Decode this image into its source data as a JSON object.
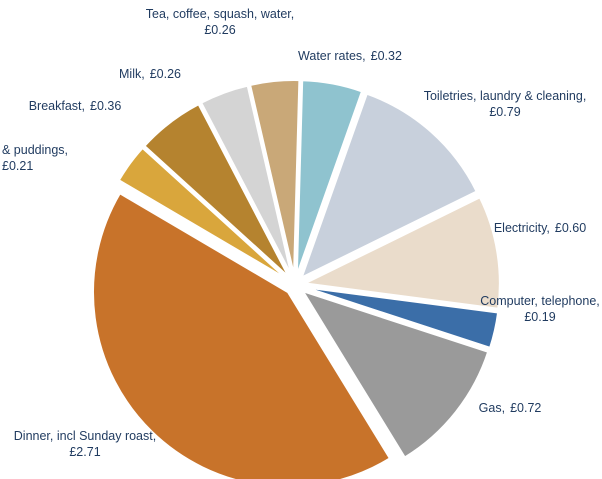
{
  "chart_data": {
    "type": "pie",
    "categories": [
      "Tea, coffee, squash, water,",
      "Water rates,",
      "Toiletries, laundry & cleaning,",
      "Electricity,",
      "Computer, telephone,",
      "Gas,",
      "Dinner, incl Sunday roast,",
      "& puddings,",
      "Breakfast,",
      "Milk,"
    ],
    "values": [
      0.26,
      0.32,
      0.79,
      0.6,
      0.19,
      0.72,
      2.71,
      0.21,
      0.36,
      0.26
    ],
    "value_labels": [
      "£0.26",
      "£0.32",
      "£0.79",
      "£0.60",
      "£0.19",
      "£0.72",
      "£2.71",
      "£0.21",
      "£0.36",
      "£0.26"
    ],
    "colors": [
      "#c9a878",
      "#8fc3cf",
      "#c8d0dc",
      "#eadccb",
      "#3b6ea8",
      "#9a9a9a",
      "#c8732a",
      "#d9a63c",
      "#b5832f",
      "#d4d4d4"
    ]
  }
}
